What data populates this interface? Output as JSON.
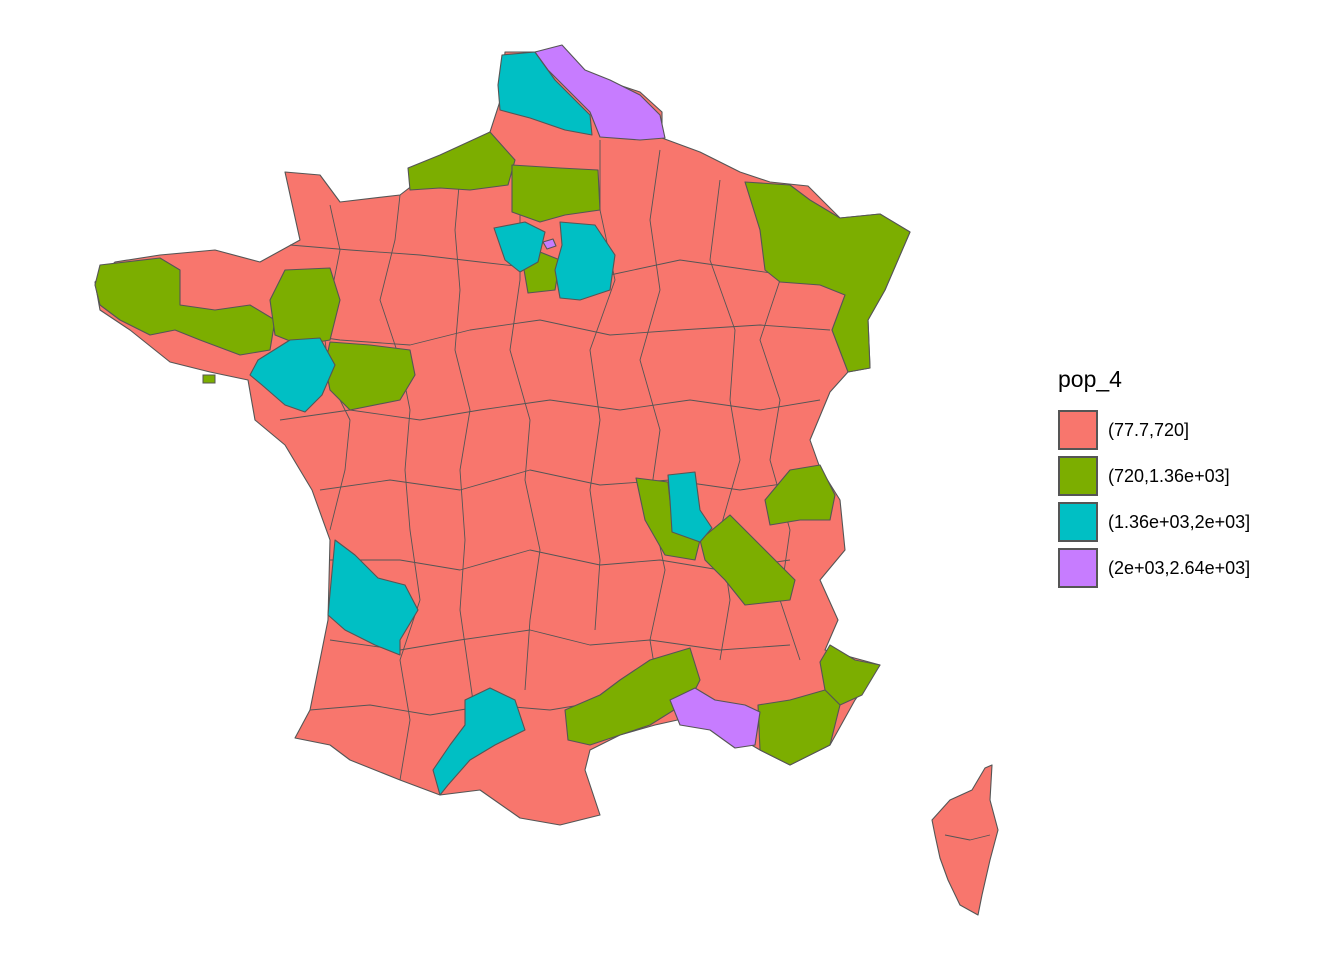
{
  "legend": {
    "title": "pop_4",
    "items": [
      {
        "label": "(77.7,720]",
        "color": "#F8766D"
      },
      {
        "label": "(720,1.36e+03]",
        "color": "#7CAE00"
      },
      {
        "label": "(1.36e+03,2e+03]",
        "color": "#00BFC4"
      },
      {
        "label": "(2e+03,2.64e+03]",
        "color": "#C77CFF"
      }
    ]
  },
  "map": {
    "subject": "France departments",
    "fill_variable": "pop_4",
    "base_color": "#F8766D",
    "border_color": "#555555"
  }
}
